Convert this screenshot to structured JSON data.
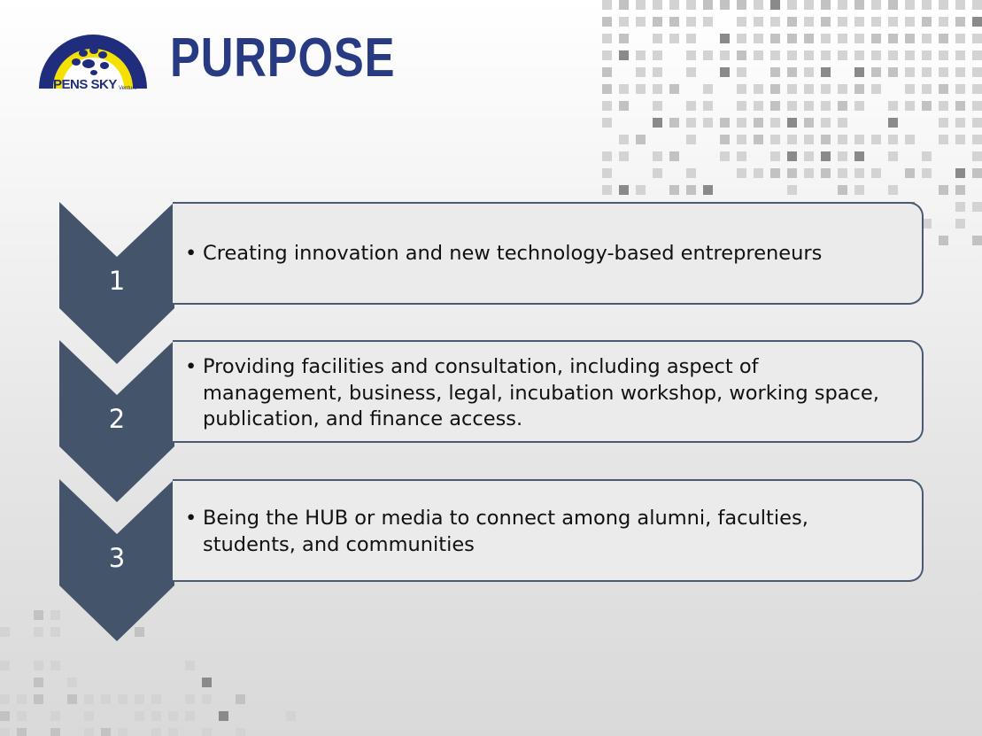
{
  "header": {
    "title": "PURPOSE",
    "logo_text": "PENS SKY",
    "logo_subtext": "Venture"
  },
  "colors": {
    "title": "#283a82",
    "chevron": "#44546a",
    "box_fill": "#ebebeb",
    "box_border": "#4a5a73",
    "logo_blue": "#1f2d7c",
    "logo_yellow": "#f5e100"
  },
  "items": [
    {
      "number": "1",
      "text": "Creating innovation and new technology-based entrepreneurs"
    },
    {
      "number": "2",
      "text": "Providing facilities and consultation, including aspect of management, business, legal, incubation workshop, working space, publication, and finance access."
    },
    {
      "number": "3",
      "text": "Being the HUB or media to connect among alumni, faculties, students, and communities"
    }
  ]
}
